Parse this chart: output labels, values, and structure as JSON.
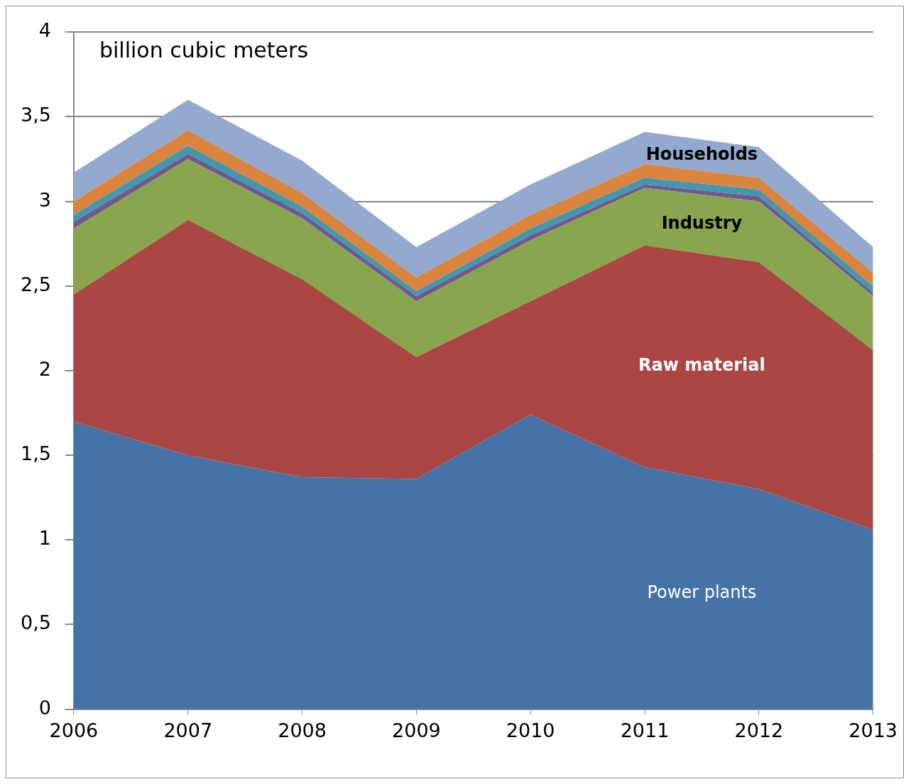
{
  "chart_data": {
    "type": "area",
    "stacked": true,
    "ylabel": "billion cubic meters",
    "x": [
      2006,
      2007,
      2008,
      2009,
      2010,
      2011,
      2012,
      2013
    ],
    "xlim": [
      2006,
      2013
    ],
    "xticks": [
      2006,
      2007,
      2008,
      2009,
      2010,
      2011,
      2012,
      2013
    ],
    "ylim": [
      0,
      4
    ],
    "yticks": [
      0,
      {
        "value": 0.5,
        "label": "0,5"
      },
      1,
      {
        "value": 1.5,
        "label": "1,5"
      },
      2,
      {
        "value": 2.5,
        "label": "2,5"
      },
      3,
      {
        "value": 3.5,
        "label": "3,5"
      },
      4
    ],
    "grid": "y",
    "legend": false,
    "series": [
      {
        "name": "Power plants",
        "color": "#4672a7",
        "values": [
          1.7,
          1.5,
          1.37,
          1.36,
          1.74,
          1.43,
          1.3,
          1.06
        ]
      },
      {
        "name": "Raw material",
        "color": "#aa4644",
        "values": [
          0.75,
          1.39,
          1.17,
          0.72,
          0.67,
          1.31,
          1.34,
          1.06
        ]
      },
      {
        "name": "Industry",
        "color": "#89a54e",
        "values": [
          0.39,
          0.36,
          0.36,
          0.33,
          0.36,
          0.34,
          0.36,
          0.32
        ]
      },
      {
        "color": "#71588f",
        "values": [
          0.04,
          0.03,
          0.03,
          0.03,
          0.03,
          0.02,
          0.03,
          0.02
        ]
      },
      {
        "color": "#4198af",
        "values": [
          0.04,
          0.05,
          0.04,
          0.03,
          0.04,
          0.04,
          0.04,
          0.04
        ]
      },
      {
        "color": "#db843d",
        "values": [
          0.08,
          0.09,
          0.08,
          0.08,
          0.08,
          0.08,
          0.07,
          0.08
        ]
      },
      {
        "name": "Households",
        "color": "#93a9cf",
        "values": [
          0.17,
          0.18,
          0.19,
          0.18,
          0.18,
          0.19,
          0.18,
          0.15
        ]
      }
    ]
  }
}
